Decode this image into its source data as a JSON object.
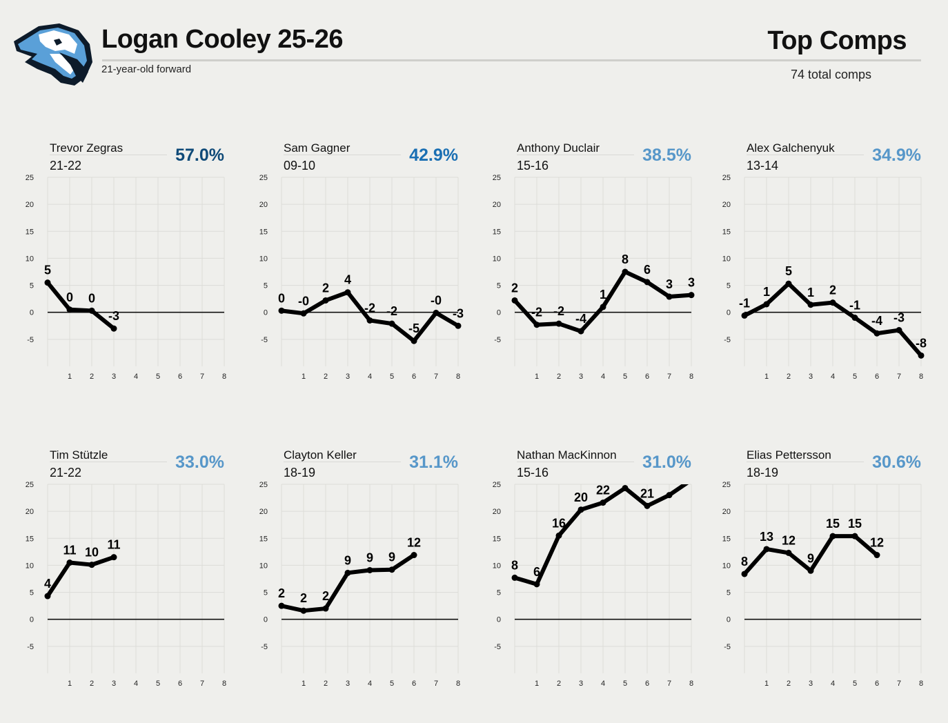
{
  "header": {
    "player": "Logan Cooley 25-26",
    "subtitle": "21-year-old forward",
    "section_title": "Top Comps",
    "total_comps": "74 total comps"
  },
  "colors": {
    "pct_dark": "#0f4a78",
    "pct_mid": "#1a6fb3",
    "pct_light": "#5797c9",
    "line": "#000000"
  },
  "chart_data": [
    {
      "type": "line",
      "name": "Trevor Zegras",
      "season": "21-22",
      "pct": "57.0%",
      "pct_color": "#0f4a78",
      "x": [
        0,
        1,
        2,
        3
      ],
      "values": [
        5.5,
        0.5,
        0.3,
        -3
      ],
      "labels": [
        "5",
        "0",
        "0",
        "-3"
      ],
      "xticks": [
        "1",
        "2",
        "3",
        "4",
        "5",
        "6",
        "7",
        "8"
      ],
      "yticks": [
        "25",
        "20",
        "15",
        "10",
        "5",
        "0",
        "-5"
      ],
      "ylim": [
        -10,
        25
      ],
      "xlim": [
        0,
        8
      ]
    },
    {
      "type": "line",
      "name": "Sam Gagner",
      "season": "09-10",
      "pct": "42.9%",
      "pct_color": "#1a6fb3",
      "x": [
        0,
        1,
        2,
        3,
        4,
        5,
        6,
        7,
        8
      ],
      "values": [
        0.3,
        -0.2,
        2.2,
        3.7,
        -1.5,
        -2.1,
        -5.3,
        -0.1,
        -2.5
      ],
      "labels": [
        "0",
        "-0",
        "2",
        "4",
        "-2",
        "-2",
        "-5",
        "-0",
        "-3"
      ],
      "xticks": [
        "1",
        "2",
        "3",
        "4",
        "5",
        "6",
        "7",
        "8"
      ],
      "yticks": [
        "25",
        "20",
        "15",
        "10",
        "5",
        "0",
        "-5"
      ],
      "ylim": [
        -10,
        25
      ],
      "xlim": [
        0,
        8
      ]
    },
    {
      "type": "line",
      "name": "Anthony Duclair",
      "season": "15-16",
      "pct": "38.5%",
      "pct_color": "#5797c9",
      "x": [
        0,
        1,
        2,
        3,
        4,
        5,
        6,
        7,
        8
      ],
      "values": [
        2.2,
        -2.3,
        -2.1,
        -3.5,
        1.0,
        7.5,
        5.6,
        2.9,
        3.2
      ],
      "labels": [
        "2",
        "-2",
        "-2",
        "-4",
        "1",
        "8",
        "6",
        "3",
        "3"
      ],
      "xticks": [
        "1",
        "2",
        "3",
        "4",
        "5",
        "6",
        "7",
        "8"
      ],
      "yticks": [
        "25",
        "20",
        "15",
        "10",
        "5",
        "0",
        "-5"
      ],
      "ylim": [
        -10,
        25
      ],
      "xlim": [
        0,
        8
      ]
    },
    {
      "type": "line",
      "name": "Alex Galchenyuk",
      "season": "13-14",
      "pct": "34.9%",
      "pct_color": "#5797c9",
      "x": [
        0,
        1,
        2,
        3,
        4,
        5,
        6,
        7,
        8
      ],
      "values": [
        -0.6,
        1.5,
        5.3,
        1.4,
        1.8,
        -1.0,
        -3.9,
        -3.3,
        -8.0
      ],
      "labels": [
        "-1",
        "1",
        "5",
        "1",
        "2",
        "-1",
        "-4",
        "-3",
        "-8"
      ],
      "xticks": [
        "1",
        "2",
        "3",
        "4",
        "5",
        "6",
        "7",
        "8"
      ],
      "yticks": [
        "25",
        "20",
        "15",
        "10",
        "5",
        "0",
        "-5"
      ],
      "ylim": [
        -10,
        25
      ],
      "xlim": [
        0,
        8
      ]
    },
    {
      "type": "line",
      "name": "Tim Stützle",
      "season": "21-22",
      "pct": "33.0%",
      "pct_color": "#5797c9",
      "x": [
        0,
        1,
        2,
        3
      ],
      "values": [
        4.3,
        10.5,
        10.1,
        11.5
      ],
      "labels": [
        "4",
        "11",
        "10",
        "11"
      ],
      "xticks": [
        "1",
        "2",
        "3",
        "4",
        "5",
        "6",
        "7",
        "8"
      ],
      "yticks": [
        "25",
        "20",
        "15",
        "10",
        "5",
        "0",
        "-5"
      ],
      "ylim": [
        -10,
        25
      ],
      "xlim": [
        0,
        8
      ]
    },
    {
      "type": "line",
      "name": "Clayton Keller",
      "season": "18-19",
      "pct": "31.1%",
      "pct_color": "#5797c9",
      "x": [
        0,
        1,
        2,
        3,
        4,
        5,
        6
      ],
      "values": [
        2.5,
        1.6,
        2.0,
        8.6,
        9.1,
        9.2,
        11.9
      ],
      "labels": [
        "2",
        "2",
        "2",
        "9",
        "9",
        "9",
        "12"
      ],
      "xticks": [
        "1",
        "2",
        "3",
        "4",
        "5",
        "6",
        "7",
        "8"
      ],
      "yticks": [
        "25",
        "20",
        "15",
        "10",
        "5",
        "0",
        "-5"
      ],
      "ylim": [
        -10,
        25
      ],
      "xlim": [
        0,
        8
      ]
    },
    {
      "type": "line",
      "name": "Nathan MacKinnon",
      "season": "15-16",
      "pct": "31.0%",
      "pct_color": "#5797c9",
      "x": [
        0,
        1,
        2,
        3,
        4,
        5,
        6,
        7,
        8
      ],
      "values": [
        7.7,
        6.5,
        15.5,
        20.3,
        21.6,
        24.3,
        21.0,
        23.0,
        25.8
      ],
      "labels": [
        "8",
        "6",
        "16",
        "20",
        "22",
        "",
        "21",
        "",
        ""
      ],
      "xticks": [
        "1",
        "2",
        "3",
        "4",
        "5",
        "6",
        "7",
        "8"
      ],
      "yticks": [
        "25",
        "20",
        "15",
        "10",
        "5",
        "0",
        "-5"
      ],
      "ylim": [
        -10,
        25
      ],
      "xlim": [
        0,
        8
      ]
    },
    {
      "type": "line",
      "name": "Elias Pettersson",
      "season": "18-19",
      "pct": "30.6%",
      "pct_color": "#5797c9",
      "x": [
        0,
        1,
        2,
        3,
        4,
        5,
        6
      ],
      "values": [
        8.4,
        13.0,
        12.3,
        9.0,
        15.4,
        15.4,
        11.9
      ],
      "labels": [
        "8",
        "13",
        "12",
        "9",
        "15",
        "15",
        "12"
      ],
      "xticks": [
        "1",
        "2",
        "3",
        "4",
        "5",
        "6",
        "7",
        "8"
      ],
      "yticks": [
        "25",
        "20",
        "15",
        "10",
        "5",
        "0",
        "-5"
      ],
      "ylim": [
        -10,
        25
      ],
      "xlim": [
        0,
        8
      ]
    }
  ]
}
